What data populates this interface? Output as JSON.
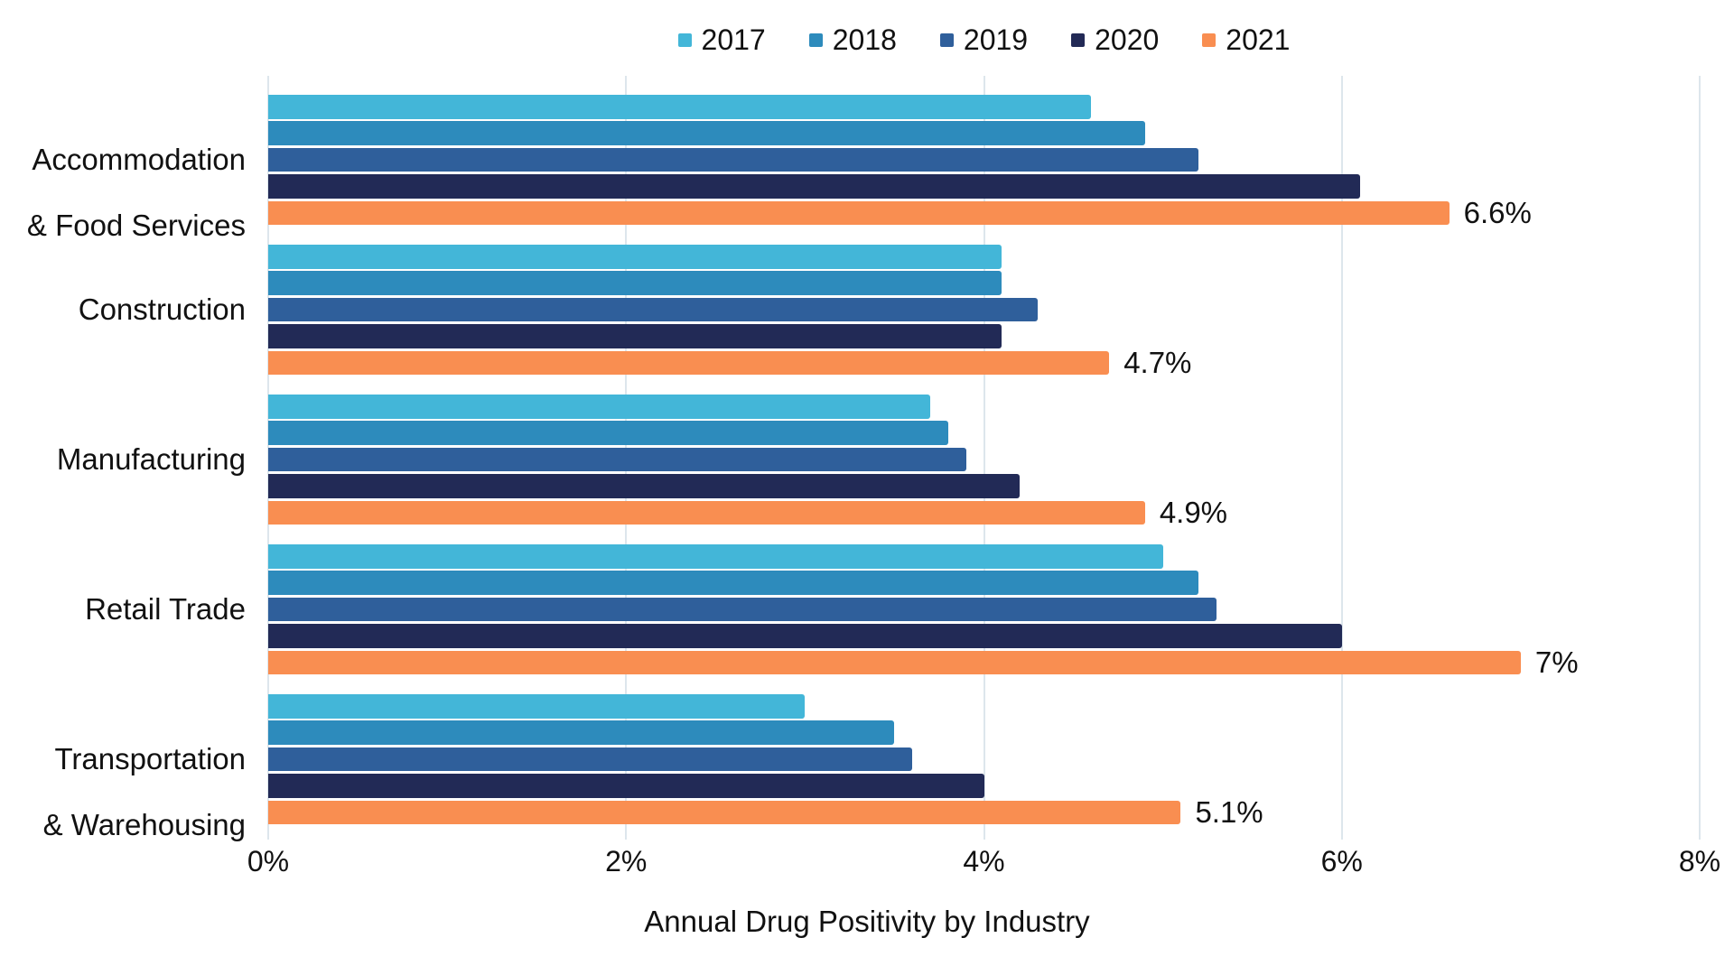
{
  "chart_data": {
    "type": "bar",
    "orientation": "horizontal",
    "title": "Annual Drug Positivity by Industry",
    "categories": [
      "Accommodation & Food Services",
      "Construction",
      "Manufacturing",
      "Retail Trade",
      "Transportation & Warehousing"
    ],
    "category_label_lines": [
      [
        "Accommodation",
        "& Food Services"
      ],
      [
        "Construction"
      ],
      [
        "Manufacturing"
      ],
      [
        "Retail Trade"
      ],
      [
        "Transportation",
        "& Warehousing"
      ]
    ],
    "series": [
      {
        "name": "2017",
        "color": "#43B6D8",
        "values": [
          4.6,
          4.1,
          3.7,
          5.0,
          3.0
        ]
      },
      {
        "name": "2018",
        "color": "#2D8BBC",
        "values": [
          4.9,
          4.1,
          3.8,
          5.2,
          3.5
        ]
      },
      {
        "name": "2019",
        "color": "#2F5F9B",
        "values": [
          5.2,
          4.3,
          3.9,
          5.3,
          3.6
        ]
      },
      {
        "name": "2020",
        "color": "#222A56",
        "values": [
          6.1,
          4.1,
          4.2,
          6.0,
          4.0
        ]
      },
      {
        "name": "2021",
        "color": "#F98E51",
        "values": [
          6.6,
          4.7,
          4.9,
          7.0,
          5.1
        ]
      }
    ],
    "data_labels": {
      "series": "2021",
      "labels": [
        "6.6%",
        "4.7%",
        "4.9%",
        "7%",
        "5.1%"
      ]
    },
    "x_axis": {
      "tick_labels": [
        "0%",
        "2%",
        "4%",
        "6%",
        "8%"
      ],
      "tick_values": [
        0,
        2,
        4,
        6,
        8
      ],
      "min": 0,
      "max": 8
    },
    "legend": {
      "position": "top",
      "entries": [
        "2017",
        "2018",
        "2019",
        "2020",
        "2021"
      ]
    },
    "grid": true,
    "gridline_color": "#dde6ec",
    "text_color": "#111111",
    "background_color": "#FFFFFF"
  }
}
